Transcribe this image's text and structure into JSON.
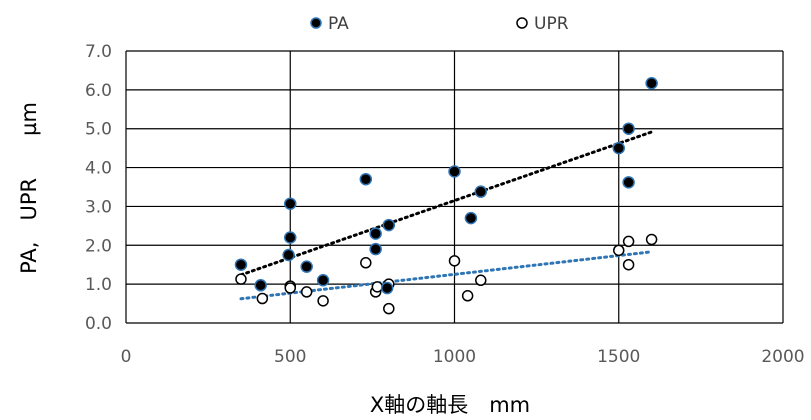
{
  "chart_data": {
    "type": "scatter",
    "xlabel": "X軸の軸長　mm",
    "ylabel": "PA,　UPR　　µm",
    "xlim": [
      0,
      2000
    ],
    "ylim": [
      0,
      7
    ],
    "x_ticks": [
      "0",
      "500",
      "1000",
      "1500",
      "2000"
    ],
    "y_ticks": [
      "0.0",
      "1.0",
      "2.0",
      "3.0",
      "4.0",
      "5.0",
      "6.0",
      "7.0"
    ],
    "legend_position": "top",
    "grid": true,
    "series": [
      {
        "name": "PA",
        "marker": "filled-circle",
        "color": "#000000",
        "edge_color": "#2E75B6",
        "trendline": {
          "type": "linear",
          "color": "#000000",
          "style": "dotted"
        },
        "points": [
          [
            350,
            1.5
          ],
          [
            410,
            0.97
          ],
          [
            495,
            1.75
          ],
          [
            500,
            2.2
          ],
          [
            500,
            3.07
          ],
          [
            550,
            1.45
          ],
          [
            600,
            1.1
          ],
          [
            730,
            3.7
          ],
          [
            760,
            2.3
          ],
          [
            760,
            1.9
          ],
          [
            795,
            0.9
          ],
          [
            800,
            2.52
          ],
          [
            1000,
            3.9
          ],
          [
            1050,
            2.7
          ],
          [
            1080,
            3.38
          ],
          [
            1500,
            4.5
          ],
          [
            1530,
            5.0
          ],
          [
            1530,
            3.62
          ],
          [
            1600,
            6.17
          ]
        ]
      },
      {
        "name": "UPR",
        "marker": "open-circle",
        "color": "#000000",
        "trendline": {
          "type": "linear",
          "color": "#2E75B6",
          "style": "dotted"
        },
        "points": [
          [
            350,
            1.13
          ],
          [
            415,
            0.63
          ],
          [
            500,
            0.95
          ],
          [
            500,
            0.9
          ],
          [
            550,
            0.8
          ],
          [
            600,
            0.57
          ],
          [
            730,
            1.55
          ],
          [
            760,
            0.8
          ],
          [
            765,
            0.93
          ],
          [
            800,
            0.37
          ],
          [
            800,
            1.0
          ],
          [
            1000,
            1.6
          ],
          [
            1040,
            0.7
          ],
          [
            1080,
            1.1
          ],
          [
            1500,
            1.87
          ],
          [
            1530,
            2.1
          ],
          [
            1530,
            1.5
          ],
          [
            1600,
            2.15
          ]
        ]
      }
    ]
  }
}
